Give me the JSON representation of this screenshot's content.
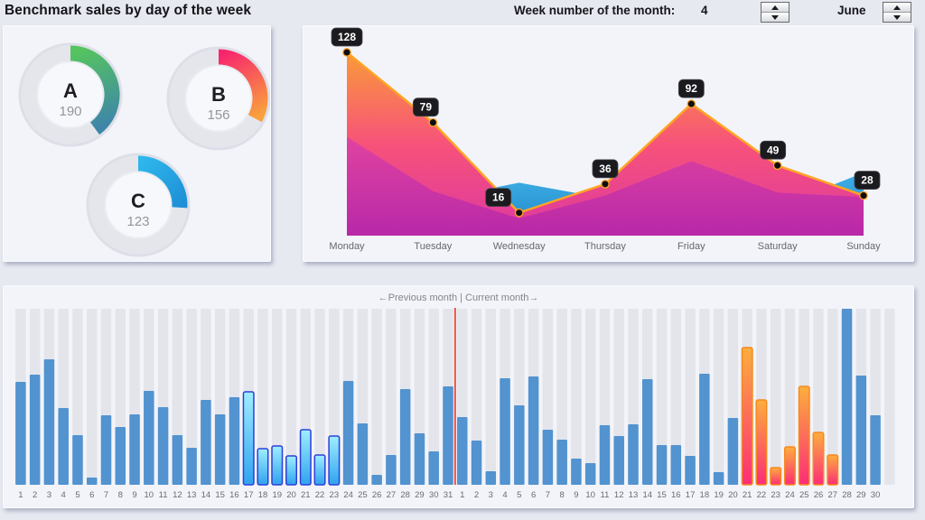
{
  "header": {
    "title": "Benchmark sales by day of the week",
    "week_label": "Week number of the month:",
    "week_value": "4",
    "month_value": "June"
  },
  "chart_data": [
    {
      "type": "pie",
      "subtype": "donut-kpi",
      "items": [
        {
          "label": "A",
          "value": 190,
          "fraction": 0.4,
          "gradient": [
            "#55C45F",
            "#3E86A8"
          ]
        },
        {
          "label": "B",
          "value": 156,
          "fraction": 0.33,
          "gradient": [
            "#F8256E",
            "#F9A13C"
          ]
        },
        {
          "label": "C",
          "value": 123,
          "fraction": 0.26,
          "gradient": [
            "#2EB7EC",
            "#1E8FD6"
          ]
        }
      ],
      "track_color": "#e4e6ec"
    },
    {
      "type": "area",
      "categories": [
        "Monday",
        "Tuesday",
        "Wednesday",
        "Thursday",
        "Friday",
        "Saturday",
        "Sunday"
      ],
      "series": [
        {
          "name": "sales",
          "values": [
            128,
            79,
            16,
            36,
            92,
            49,
            28
          ]
        },
        {
          "name": "benchmark-blue",
          "values": [
            30,
            25,
            37,
            26,
            40,
            20,
            44
          ]
        },
        {
          "name": "overlay-magenta",
          "values": [
            69,
            31,
            12,
            28,
            52,
            30,
            27
          ]
        }
      ],
      "point_labels": [
        "128",
        "79",
        "16",
        "36",
        "92",
        "49",
        "28"
      ],
      "label_dx": [
        0,
        -8,
        -23,
        0,
        0,
        -5,
        4
      ],
      "ylim": [
        0,
        140
      ],
      "colors": {
        "line": "#FFA424",
        "fill_top": "#F99B38",
        "fill_mid": "#F7527A",
        "fill_bottom": "#DD38A0",
        "overlay_top": "#E043A0",
        "overlay_bottom": "#B828A8",
        "blue_top": "#3FAFE6",
        "blue_bottom": "#1E86C7",
        "chip_bg": "#1B1B1F",
        "chip_border": "#45454d",
        "point_fill": "#0e0e12"
      }
    },
    {
      "type": "bar",
      "caption": "←Previous month | Current month→",
      "ylim": [
        0,
        200
      ],
      "groups": [
        {
          "name": "previous_month",
          "categories": [
            1,
            2,
            3,
            4,
            5,
            6,
            7,
            8,
            9,
            10,
            11,
            12,
            13,
            14,
            15,
            16,
            17,
            18,
            19,
            20,
            21,
            22,
            23,
            24,
            25,
            26,
            27,
            28,
            29,
            30,
            31
          ],
          "values": [
            114,
            122,
            139,
            85,
            55,
            8,
            77,
            64,
            78,
            104,
            86,
            55,
            41,
            94,
            78,
            97,
            103,
            40,
            43,
            32,
            61,
            33,
            54,
            115,
            68,
            11,
            33,
            106,
            57,
            37,
            109
          ],
          "highlight_days": [
            17,
            18,
            19,
            20,
            21,
            22,
            23
          ]
        },
        {
          "name": "current_month",
          "categories": [
            1,
            2,
            3,
            4,
            5,
            6,
            7,
            8,
            9,
            10,
            11,
            12,
            13,
            14,
            15,
            16,
            17,
            18,
            19,
            20,
            21,
            22,
            23,
            24,
            25,
            26,
            27,
            28,
            29,
            30
          ],
          "values": [
            75,
            49,
            15,
            118,
            88,
            120,
            61,
            50,
            29,
            24,
            66,
            54,
            67,
            117,
            44,
            44,
            32,
            123,
            14,
            74,
            152,
            94,
            19,
            42,
            109,
            58,
            33,
            195,
            121,
            77
          ],
          "highlight_days": [
            21,
            22,
            23,
            24,
            25,
            26,
            27
          ]
        }
      ],
      "colors": {
        "bar": "#5293D0",
        "slot_bg": "#e3e5eb",
        "divider": "#F05045",
        "hl_prev_border": "#2F3ED8",
        "hl_prev_top": "#9FEEFF",
        "hl_prev_bottom": "#2FA3EF",
        "hl_cur_border": "#F68A1E",
        "hl_cur_top": "#FCAE3D",
        "hl_cur_bottom": "#FC2D77"
      }
    }
  ]
}
